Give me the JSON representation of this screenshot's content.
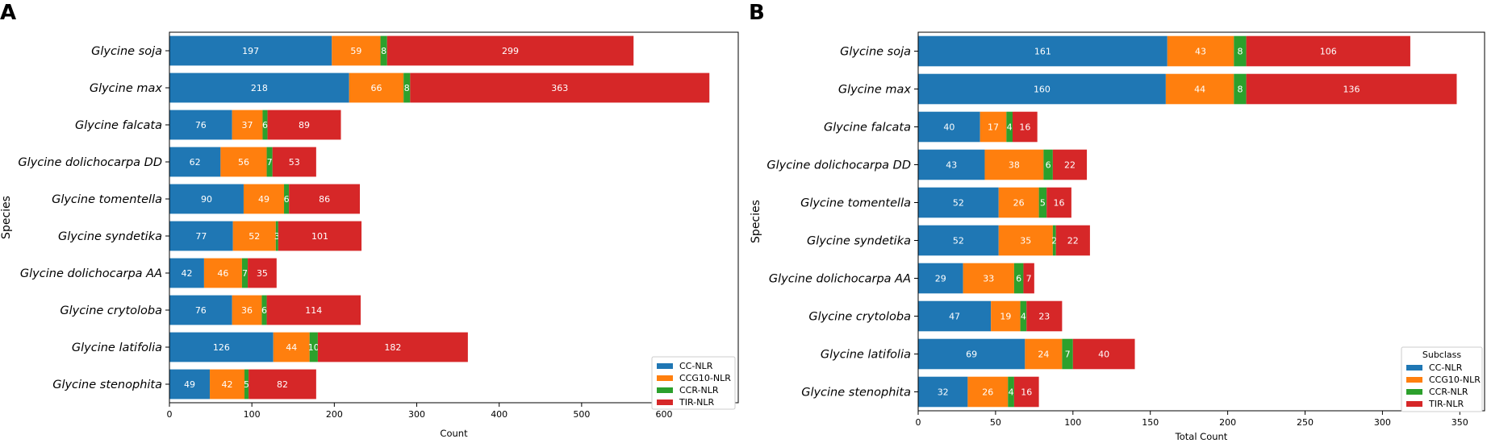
{
  "chart_data": [
    {
      "panel": "A",
      "type": "bar",
      "orientation": "horizontal",
      "stacked": true,
      "categories": [
        "Glycine soja",
        "Glycine max",
        "Glycine falcata",
        "Glycine dolichocarpa DD",
        "Glycine tomentella",
        "Glycine syndetika",
        "Glycine dolichocarpa AA",
        "Glycine crytoloba",
        "Glycine latifolia",
        "Glycine stenophita"
      ],
      "series": [
        {
          "name": "CC-NLR",
          "color": "#1f77b4",
          "values": [
            197,
            218,
            76,
            62,
            90,
            77,
            42,
            76,
            126,
            49
          ]
        },
        {
          "name": "CCG10-NLR",
          "color": "#ff7f0e",
          "values": [
            59,
            66,
            37,
            56,
            49,
            52,
            46,
            36,
            44,
            42
          ]
        },
        {
          "name": "CCR-NLR",
          "color": "#2ca02c",
          "values": [
            8,
            8,
            6,
            7,
            6,
            3,
            7,
            6,
            10,
            5
          ]
        },
        {
          "name": "TIR-NLR",
          "color": "#d62728",
          "values": [
            299,
            363,
            89,
            53,
            86,
            101,
            35,
            114,
            182,
            82
          ]
        }
      ],
      "xlabel": "Count",
      "ylabel": "Species",
      "xlim": [
        0,
        690
      ],
      "xticks": [
        0,
        100,
        200,
        300,
        400,
        500,
        600
      ],
      "legend_title": "",
      "legend_position": "lower-right"
    },
    {
      "panel": "B",
      "type": "bar",
      "orientation": "horizontal",
      "stacked": true,
      "categories": [
        "Glycine soja",
        "Glycine max",
        "Glycine falcata",
        "Glycine dolichocarpa DD",
        "Glycine tomentella",
        "Glycine syndetika",
        "Glycine dolichocarpa AA",
        "Glycine crytoloba",
        "Glycine latifolia",
        "Glycine stenophita"
      ],
      "series": [
        {
          "name": "CC-NLR",
          "color": "#1f77b4",
          "values": [
            161,
            160,
            40,
            43,
            52,
            52,
            29,
            47,
            69,
            32
          ]
        },
        {
          "name": "CCG10-NLR",
          "color": "#ff7f0e",
          "values": [
            43,
            44,
            17,
            38,
            26,
            35,
            33,
            19,
            24,
            26
          ]
        },
        {
          "name": "CCR-NLR",
          "color": "#2ca02c",
          "values": [
            8,
            8,
            4,
            6,
            5,
            2,
            6,
            4,
            7,
            4
          ]
        },
        {
          "name": "TIR-NLR",
          "color": "#d62728",
          "values": [
            106,
            136,
            16,
            22,
            16,
            22,
            7,
            23,
            40,
            16
          ]
        }
      ],
      "xlabel": "Total Count",
      "ylabel": "Species",
      "xlim": [
        0,
        366
      ],
      "xticks": [
        0,
        50,
        100,
        150,
        200,
        250,
        300,
        350
      ],
      "legend_title": "Subclass",
      "legend_position": "lower-right"
    }
  ]
}
